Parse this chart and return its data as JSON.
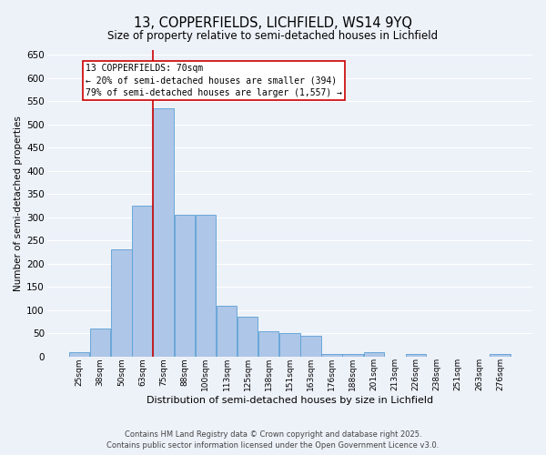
{
  "title1": "13, COPPERFIELDS, LICHFIELD, WS14 9YQ",
  "title2": "Size of property relative to semi-detached houses in Lichfield",
  "xlabel": "Distribution of semi-detached houses by size in Lichfield",
  "ylabel": "Number of semi-detached properties",
  "bin_labels": [
    "25sqm",
    "38sqm",
    "50sqm",
    "63sqm",
    "75sqm",
    "88sqm",
    "100sqm",
    "113sqm",
    "125sqm",
    "138sqm",
    "151sqm",
    "163sqm",
    "176sqm",
    "188sqm",
    "201sqm",
    "213sqm",
    "226sqm",
    "238sqm",
    "251sqm",
    "263sqm",
    "276sqm"
  ],
  "bar_values": [
    10,
    60,
    230,
    325,
    535,
    305,
    305,
    110,
    85,
    55,
    50,
    45,
    5,
    5,
    10,
    0,
    5,
    0,
    0,
    0,
    5
  ],
  "bar_color": "#aec6e8",
  "bar_edge_color": "#5a9fd4",
  "vline_color": "#cc0000",
  "vline_x_index": 3.5,
  "annotation_text": "13 COPPERFIELDS: 70sqm\n← 20% of semi-detached houses are smaller (394)\n79% of semi-detached houses are larger (1,557) →",
  "annotation_box_color": "#ffffff",
  "annotation_box_edge_color": "#cc0000",
  "ylim": [
    0,
    660
  ],
  "yticks": [
    0,
    50,
    100,
    150,
    200,
    250,
    300,
    350,
    400,
    450,
    500,
    550,
    600,
    650
  ],
  "footer1": "Contains HM Land Registry data © Crown copyright and database right 2025.",
  "footer2": "Contains public sector information licensed under the Open Government Licence v3.0.",
  "bg_color": "#edf2f9",
  "grid_color": "#ffffff",
  "title1_fontsize": 10.5,
  "title2_fontsize": 8.5,
  "ylabel_fontsize": 7.5,
  "xlabel_fontsize": 8.0,
  "ytick_fontsize": 7.5,
  "xtick_fontsize": 6.5,
  "annot_fontsize": 7.0,
  "footer_fontsize": 6.0
}
